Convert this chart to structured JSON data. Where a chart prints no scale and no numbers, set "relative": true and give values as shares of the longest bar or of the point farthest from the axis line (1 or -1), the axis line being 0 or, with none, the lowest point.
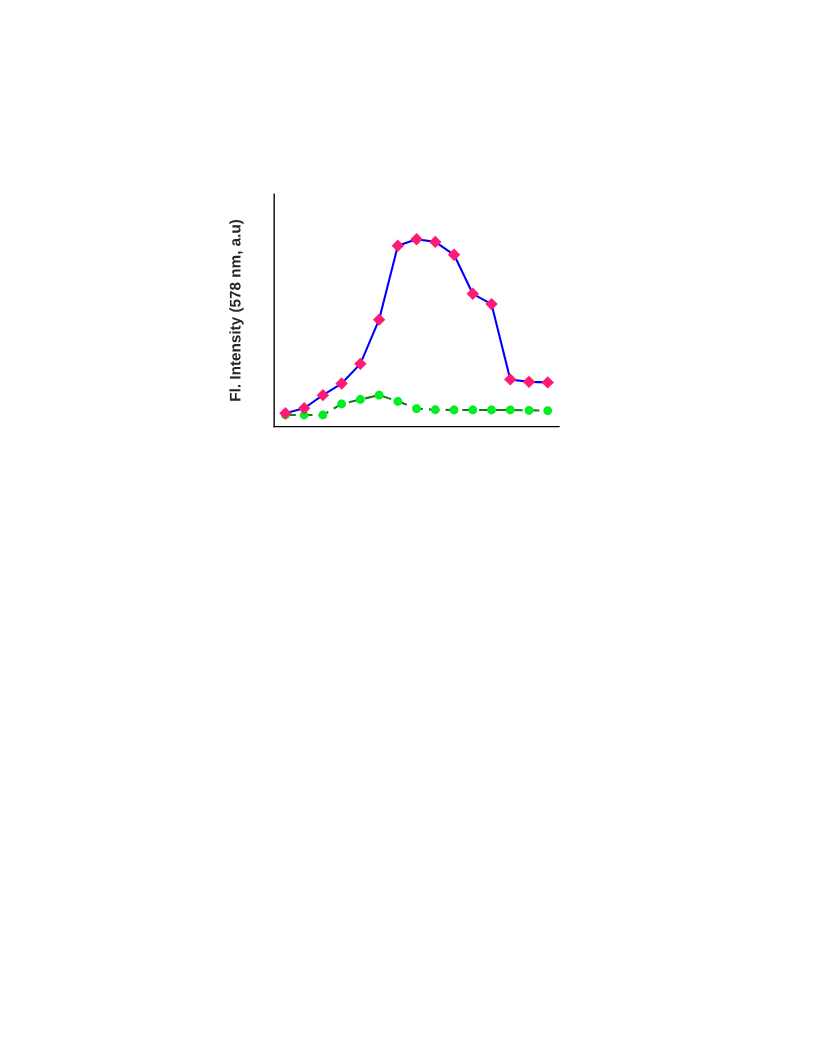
{
  "chart_data": {
    "type": "line",
    "ylabel": "Fl. Intensity (578 nm, a.u)",
    "relative": true,
    "categories": [
      null,
      null,
      null,
      null,
      null,
      null,
      null,
      null,
      null,
      null,
      null,
      null,
      null,
      null,
      null
    ],
    "series": [
      {
        "color": "#0000ff",
        "colors": [
          "#ff1a75",
          "#ff1a75",
          "#ff1a75",
          "#ff1a75",
          "#ff1a75",
          "#ff1a75",
          "#ff1a75",
          "#ff1a75",
          "#ff1a75",
          "#ff1a75",
          "#ff1a75",
          "#ff1a75",
          "#ff1a75",
          "#ff1a75",
          "#ff1a75"
        ],
        "marker": "diamond",
        "line_style": "solid",
        "values": [
          0.071,
          0.098,
          0.168,
          0.23,
          0.335,
          0.571,
          0.965,
          1,
          0.986,
          0.917,
          0.709,
          0.654,
          0.252,
          0.239,
          0.236
        ]
      },
      {
        "color": "#1a7a1a",
        "colors": [
          "#00ee22",
          "#00ee22",
          "#00ee22",
          "#00ee22",
          "#00ee22",
          "#00ee22",
          "#00ee22",
          "#00ee22",
          "#00ee22",
          "#00ee22",
          "#00ee22",
          "#00ee22",
          "#00ee22",
          "#00ee22",
          "#00ee22"
        ],
        "marker": "circle",
        "line_style": "dashed",
        "values": [
          0.062,
          0.062,
          0.062,
          0.121,
          0.145,
          0.168,
          0.135,
          0.096,
          0.09,
          0.089,
          0.089,
          0.089,
          0.089,
          0.087,
          0.085
        ]
      }
    ],
    "grid": false
  }
}
